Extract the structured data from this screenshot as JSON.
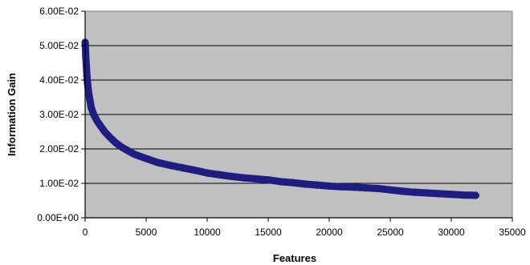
{
  "chart_data": {
    "type": "scatter",
    "title": "",
    "xlabel": "Features",
    "ylabel": "Information Gain",
    "xlim": [
      0,
      35000
    ],
    "ylim": [
      0,
      0.06
    ],
    "x_ticks": [
      "0",
      "5000",
      "10000",
      "15000",
      "20000",
      "25000",
      "30000",
      "35000"
    ],
    "y_ticks": [
      "0.00E+00",
      "1.00E-02",
      "2.00E-02",
      "3.00E-02",
      "4.00E-02",
      "5.00E-02",
      "6.00E-02"
    ],
    "grid": "horizontal",
    "legend": "none",
    "series": [
      {
        "marker": "diamond",
        "x": [
          0,
          20,
          50,
          100,
          150,
          200,
          300,
          400,
          500,
          700,
          1000,
          1300,
          1600,
          2000,
          2500,
          3000,
          3500,
          4000,
          5000,
          6000,
          7000,
          8000,
          9000,
          10000,
          11000,
          12000,
          13000,
          14000,
          15000,
          16000,
          17000,
          18000,
          19000,
          20000,
          21000,
          22000,
          23000,
          24000,
          25000,
          26000,
          27000,
          28000,
          29000,
          30000,
          31000,
          32000
        ],
        "y": [
          0.051,
          0.05,
          0.047,
          0.044,
          0.041,
          0.039,
          0.036,
          0.034,
          0.032,
          0.03,
          0.028,
          0.0265,
          0.025,
          0.0235,
          0.0218,
          0.0205,
          0.0195,
          0.0185,
          0.0172,
          0.016,
          0.0152,
          0.0145,
          0.0138,
          0.013,
          0.0125,
          0.012,
          0.0116,
          0.0113,
          0.011,
          0.0105,
          0.0102,
          0.0098,
          0.0095,
          0.0092,
          0.009,
          0.0089,
          0.0087,
          0.0085,
          0.0081,
          0.0077,
          0.0074,
          0.0072,
          0.007,
          0.0068,
          0.0066,
          0.0065
        ]
      }
    ]
  },
  "colors": {
    "plot_background": "#c0c0c0",
    "gridline": "#000000",
    "marker": "#1e1e82"
  }
}
